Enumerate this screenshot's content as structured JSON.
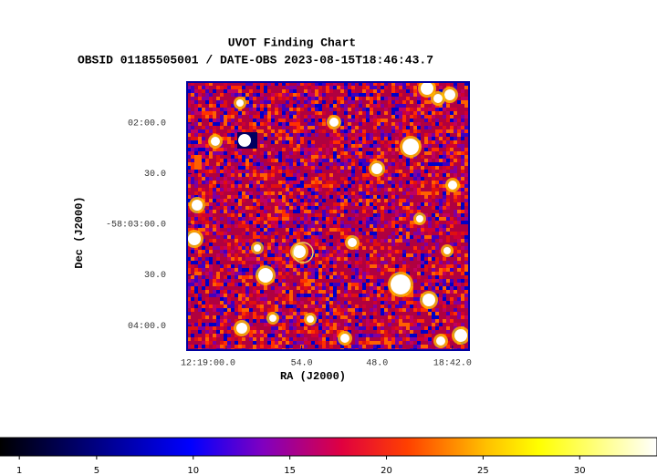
{
  "chart_data": {
    "type": "image",
    "title": "UVOT Finding Chart",
    "subtitle": "OBSID 01185505001 / DATE-OBS 2023-08-15T18:46:43.7",
    "x_label": "RA (J2000)",
    "y_label": "Dec (J2000)",
    "xlim": [
      184.763,
      184.6695
    ],
    "xticks": [
      {
        "value": 184.75,
        "label": "12:19:00.0"
      },
      {
        "value": 184.725,
        "label": "54.0"
      },
      {
        "value": 184.7,
        "label": "48.0"
      },
      {
        "value": 184.675,
        "label": "18:42.0"
      }
    ],
    "ylim": [
      -58.0707,
      -58.0266
    ],
    "yticks": [
      {
        "value": -58.03333,
        "label": "02:00.0"
      },
      {
        "value": -58.04167,
        "label": "30.0"
      },
      {
        "value": -58.05,
        "label": "-58:03:00.0"
      },
      {
        "value": -58.05833,
        "label": "30.0"
      },
      {
        "value": -58.06667,
        "label": "04:00.0"
      }
    ],
    "clim": [
      0,
      34
    ],
    "cticks": [
      1,
      5,
      10,
      15,
      20,
      25,
      30
    ]
  }
}
